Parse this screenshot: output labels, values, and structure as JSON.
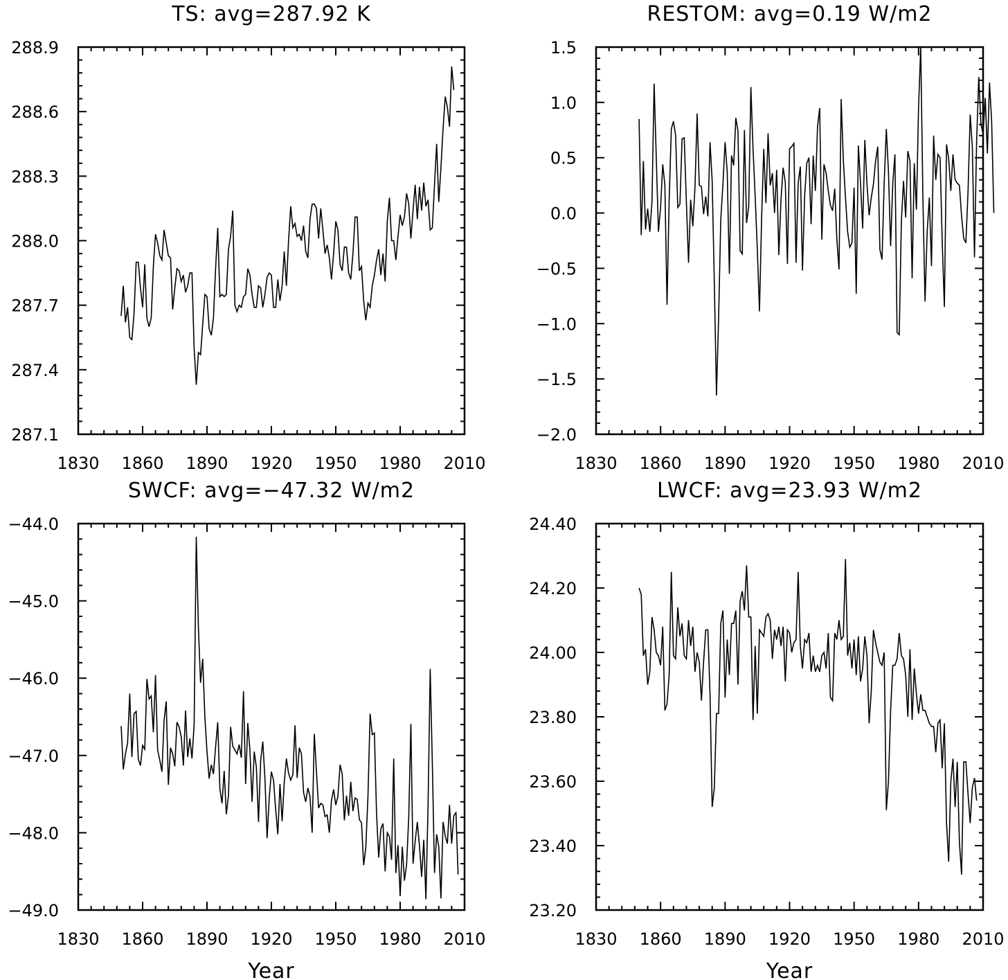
{
  "chart_data": [
    {
      "type": "line",
      "title": "TS: avg=287.92 K",
      "xlabel": "",
      "ylabel": "",
      "xlim": [
        1830,
        2010
      ],
      "ylim": [
        287.1,
        288.9
      ],
      "xticks": [
        "1830",
        "1860",
        "1890",
        "1920",
        "1950",
        "1980",
        "2010"
      ],
      "yticks": [
        "287.1",
        "287.4",
        "287.7",
        "288.0",
        "288.3",
        "288.6",
        "288.9"
      ],
      "grid": false,
      "series": [
        {
          "x_start": 1850,
          "values": [
            287.65,
            287.79,
            287.62,
            287.69,
            287.55,
            287.54,
            287.66,
            287.9,
            287.9,
            287.78,
            287.69,
            287.89,
            287.64,
            287.6,
            287.64,
            287.88,
            288.03,
            287.99,
            287.93,
            287.91,
            288.05,
            287.99,
            287.93,
            287.92,
            287.68,
            287.78,
            287.87,
            287.86,
            287.81,
            287.84,
            287.76,
            287.79,
            287.85,
            287.85,
            287.5,
            287.33,
            287.48,
            287.47,
            287.61,
            287.75,
            287.74,
            287.59,
            287.56,
            287.64,
            287.87,
            288.06,
            287.74,
            287.75,
            287.74,
            287.75,
            287.96,
            288.02,
            288.14,
            287.7,
            287.67,
            287.7,
            287.69,
            287.74,
            287.75,
            287.87,
            287.84,
            287.75,
            287.69,
            287.69,
            287.79,
            287.78,
            287.69,
            287.75,
            287.83,
            287.85,
            287.84,
            287.69,
            287.69,
            287.82,
            287.72,
            287.79,
            287.95,
            287.79,
            288.0,
            288.16,
            288.06,
            288.08,
            288.02,
            288.03,
            288.0,
            288.07,
            287.95,
            287.92,
            288.1,
            288.17,
            288.17,
            288.15,
            288.01,
            288.15,
            288.05,
            287.94,
            287.98,
            287.92,
            287.82,
            287.94,
            288.09,
            288.05,
            287.89,
            287.86,
            287.97,
            287.97,
            287.85,
            287.82,
            287.94,
            288.11,
            288.11,
            287.86,
            287.88,
            287.72,
            287.63,
            287.71,
            287.69,
            287.79,
            287.84,
            287.91,
            287.96,
            287.84,
            287.94,
            287.81,
            288.09,
            288.2,
            288.0,
            288.0,
            287.91,
            288.02,
            288.12,
            288.07,
            288.11,
            288.22,
            288.17,
            288.01,
            288.14,
            288.26,
            288.1,
            288.25,
            288.14,
            288.27,
            288.16,
            288.19,
            288.05,
            288.06,
            288.26,
            288.45,
            288.18,
            288.34,
            288.52,
            288.67,
            288.62,
            288.53,
            288.81,
            288.7
          ]
        }
      ]
    },
    {
      "type": "line",
      "title": "RESTOM: avg=0.19 W/m2",
      "xlabel": "",
      "ylabel": "",
      "xlim": [
        1830,
        2010
      ],
      "ylim": [
        -2.0,
        1.5
      ],
      "xticks": [
        "1830",
        "1860",
        "1890",
        "1920",
        "1950",
        "1980",
        "2010"
      ],
      "yticks": [
        "−2.0",
        "−1.5",
        "−1.0",
        "−0.5",
        "0.0",
        "0.5",
        "1.0",
        "1.5"
      ],
      "grid": false,
      "series": [
        {
          "x_start": 1850,
          "values": [
            0.85,
            -0.2,
            0.47,
            -0.15,
            0.04,
            -0.17,
            0.1,
            1.17,
            0.5,
            -0.17,
            0.05,
            0.44,
            0.25,
            -0.83,
            0.12,
            0.76,
            0.83,
            0.7,
            0.05,
            0.08,
            0.67,
            0.68,
            0.1,
            -0.45,
            0.12,
            -0.12,
            0.23,
            0.9,
            0.25,
            0.24,
            -0.01,
            0.15,
            -0.03,
            0.64,
            0.29,
            -0.63,
            -1.65,
            -0.94,
            -0.06,
            0.26,
            0.64,
            0.37,
            -0.55,
            0.52,
            0.43,
            0.86,
            0.74,
            -0.34,
            -0.37,
            0.75,
            -0.09,
            0.06,
            1.14,
            0.58,
            0.15,
            -0.33,
            -0.89,
            -0.04,
            0.58,
            0.09,
            0.72,
            0.25,
            0.36,
            0.0,
            0.39,
            -0.38,
            0.12,
            0.41,
            0.28,
            -0.46,
            0.58,
            0.6,
            0.63,
            -0.45,
            0.27,
            0.42,
            -0.52,
            0.15,
            0.45,
            0.5,
            -0.1,
            0.52,
            0.2,
            0.78,
            0.95,
            -0.24,
            0.44,
            0.36,
            0.2,
            0.07,
            0.02,
            0.22,
            -0.24,
            -0.51,
            1.03,
            0.48,
            0.14,
            -0.17,
            -0.31,
            -0.27,
            0.23,
            -0.73,
            0.61,
            0.27,
            -0.14,
            0.66,
            0.26,
            -0.02,
            0.14,
            0.26,
            0.47,
            0.6,
            -0.33,
            -0.42,
            0.27,
            0.76,
            0.37,
            -0.3,
            0.27,
            0.53,
            -1.08,
            -1.1,
            -0.07,
            0.29,
            -0.04,
            0.56,
            0.47,
            -0.59,
            0.45,
            0.03,
            0.96,
            1.5,
            0.15,
            -0.8,
            -0.17,
            0.14,
            -0.48,
            0.7,
            0.3,
            0.53,
            0.5,
            -0.26,
            -0.85,
            0.62,
            0.49,
            0.2,
            0.53,
            0.3,
            0.27,
            0.25,
            -0.03,
            -0.23,
            -0.27,
            0.19,
            0.89,
            0.6,
            -0.4,
            0.65,
            1.23,
            0.8,
            0.72,
            1.04,
            0.54,
            1.18,
            0.82,
            0.0
          ]
        }
      ]
    },
    {
      "type": "line",
      "title": "SWCF: avg=−47.32 W/m2",
      "xlabel": "Year",
      "ylabel": "",
      "xlim": [
        1830,
        2010
      ],
      "ylim": [
        -49.0,
        -44.0
      ],
      "xticks": [
        "1830",
        "1860",
        "1890",
        "1920",
        "1950",
        "1980",
        "2010"
      ],
      "yticks": [
        "−49.0",
        "−48.0",
        "−47.0",
        "−46.0",
        "−45.0",
        "−44.0"
      ],
      "grid": false,
      "series": [
        {
          "x_start": 1850,
          "values": [
            -46.62,
            -47.18,
            -46.98,
            -46.84,
            -46.2,
            -47.02,
            -46.46,
            -46.43,
            -47.05,
            -47.13,
            -46.87,
            -46.92,
            -46.01,
            -46.27,
            -46.23,
            -46.7,
            -45.96,
            -46.93,
            -47.06,
            -47.21,
            -46.55,
            -46.3,
            -47.38,
            -46.9,
            -46.98,
            -47.14,
            -46.57,
            -46.63,
            -46.76,
            -47.13,
            -46.42,
            -47.02,
            -46.78,
            -47.04,
            -46.6,
            -44.17,
            -45.35,
            -46.06,
            -45.75,
            -46.5,
            -46.95,
            -47.3,
            -47.12,
            -47.24,
            -46.89,
            -46.57,
            -47.43,
            -47.62,
            -47.2,
            -47.76,
            -47.52,
            -46.63,
            -46.88,
            -46.93,
            -46.98,
            -46.86,
            -47.03,
            -46.17,
            -47.37,
            -46.58,
            -46.93,
            -47.6,
            -46.95,
            -47.15,
            -47.86,
            -47.07,
            -46.82,
            -47.3,
            -48.07,
            -47.55,
            -47.21,
            -47.32,
            -47.7,
            -48.02,
            -47.37,
            -47.85,
            -47.35,
            -47.04,
            -47.23,
            -47.32,
            -47.25,
            -46.61,
            -47.29,
            -46.9,
            -46.98,
            -47.48,
            -47.6,
            -47.42,
            -47.53,
            -48.0,
            -46.72,
            -47.21,
            -47.68,
            -47.62,
            -47.64,
            -47.79,
            -47.77,
            -48.0,
            -47.58,
            -47.44,
            -47.64,
            -47.53,
            -47.12,
            -47.24,
            -47.84,
            -47.52,
            -47.78,
            -47.34,
            -47.72,
            -47.55,
            -47.57,
            -47.83,
            -47.87,
            -48.42,
            -48.19,
            -47.53,
            -46.46,
            -46.73,
            -46.71,
            -47.75,
            -48.32,
            -47.95,
            -47.88,
            -48.5,
            -48.0,
            -48.05,
            -48.35,
            -47.04,
            -48.52,
            -48.16,
            -48.82,
            -48.18,
            -48.62,
            -48.41,
            -47.8,
            -46.59,
            -48.4,
            -48.11,
            -47.86,
            -48.17,
            -48.57,
            -48.09,
            -48.86,
            -47.65,
            -45.88,
            -47.11,
            -48.52,
            -48.02,
            -48.18,
            -48.85,
            -47.86,
            -48.04,
            -48.14,
            -47.64,
            -48.14,
            -47.78,
            -47.74,
            -48.54
          ]
        }
      ]
    },
    {
      "type": "line",
      "title": "LWCF: avg=23.93 W/m2",
      "xlabel": "Year",
      "ylabel": "",
      "xlim": [
        1830,
        2010
      ],
      "ylim": [
        23.2,
        24.4
      ],
      "xticks": [
        "1830",
        "1860",
        "1890",
        "1920",
        "1950",
        "1980",
        "2010"
      ],
      "yticks": [
        "23.20",
        "23.40",
        "23.60",
        "23.80",
        "24.00",
        "24.20",
        "24.40"
      ],
      "grid": false,
      "series": [
        {
          "x_start": 1850,
          "values": [
            24.2,
            24.18,
            23.99,
            24.01,
            23.9,
            23.94,
            24.11,
            24.07,
            24.0,
            23.99,
            23.96,
            24.08,
            23.82,
            23.84,
            23.93,
            24.25,
            23.99,
            23.98,
            24.14,
            24.05,
            24.09,
            23.99,
            23.98,
            24.1,
            24.02,
            24.08,
            23.94,
            24.0,
            23.97,
            23.85,
            23.97,
            24.07,
            24.07,
            23.87,
            23.52,
            23.58,
            23.81,
            23.81,
            24.09,
            24.13,
            23.86,
            24.04,
            23.93,
            24.09,
            24.09,
            24.13,
            23.9,
            24.16,
            24.19,
            24.13,
            24.27,
            24.11,
            24.11,
            23.79,
            24.02,
            23.81,
            24.07,
            24.06,
            24.05,
            24.11,
            24.12,
            24.1,
            23.98,
            24.07,
            24.04,
            24.08,
            24.02,
            24.08,
            23.91,
            24.07,
            24.06,
            24.0,
            24.03,
            24.04,
            24.25,
            24.02,
            23.95,
            24.04,
            24.03,
            24.06,
            23.94,
            23.99,
            23.94,
            23.96,
            23.94,
            23.99,
            24.0,
            23.95,
            24.06,
            23.86,
            23.85,
            24.06,
            24.04,
            24.1,
            24.04,
            24.05,
            24.29,
            23.99,
            24.03,
            23.95,
            24.04,
            23.93,
            24.05,
            23.91,
            23.95,
            24.05,
            23.99,
            23.78,
            23.88,
            24.07,
            24.03,
            24.0,
            23.97,
            23.96,
            24.0,
            23.51,
            23.6,
            23.82,
            23.96,
            23.96,
            23.98,
            24.06,
            23.99,
            23.98,
            23.93,
            23.8,
            24.01,
            23.79,
            23.95,
            23.87,
            23.81,
            23.87,
            23.82,
            23.82,
            23.8,
            23.78,
            23.77,
            23.77,
            23.69,
            23.78,
            23.79,
            23.64,
            23.78,
            23.47,
            23.35,
            23.6,
            23.67,
            23.52,
            23.66,
            23.41,
            23.31,
            23.66,
            23.66,
            23.56,
            23.47,
            23.58,
            23.61,
            23.54
          ]
        }
      ]
    }
  ]
}
